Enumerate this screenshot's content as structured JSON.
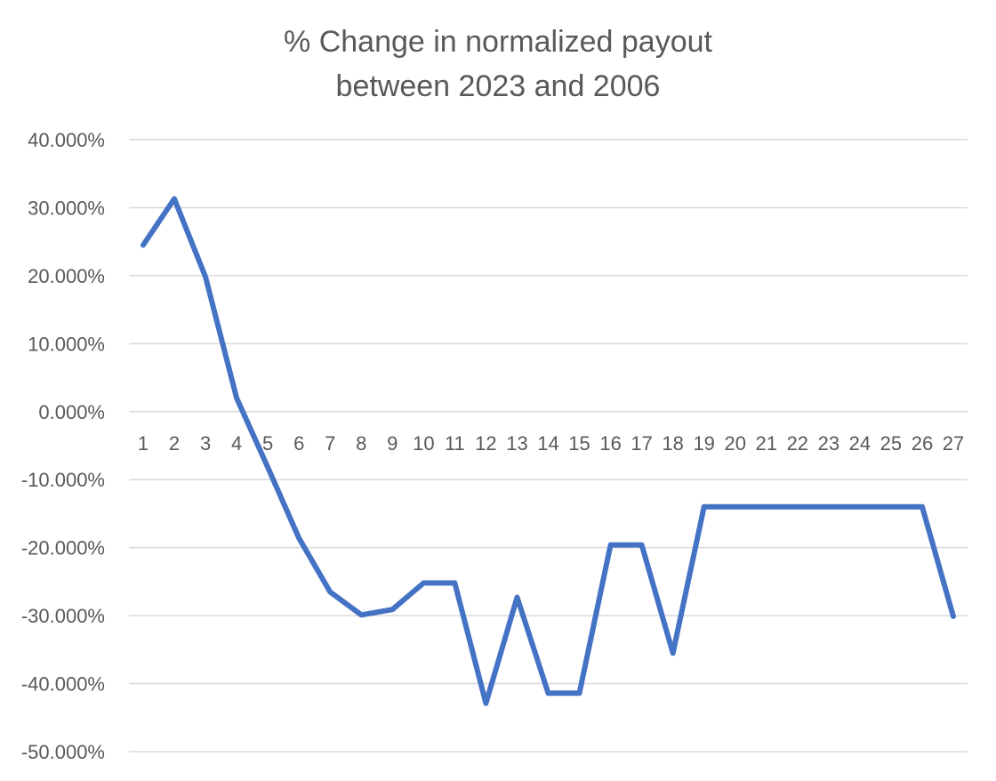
{
  "colors": {
    "series": "#4472C4",
    "grid": "#d9d9d9",
    "text": "#595959",
    "background": "#ffffff"
  },
  "chart_data": {
    "type": "line",
    "title_lines": [
      "% Change in normalized payout",
      "between 2023 and 2006"
    ],
    "xlabel": "",
    "ylabel": "",
    "categories": [
      "1",
      "2",
      "3",
      "4",
      "5",
      "6",
      "7",
      "8",
      "9",
      "10",
      "11",
      "12",
      "13",
      "14",
      "15",
      "16",
      "17",
      "18",
      "19",
      "20",
      "21",
      "22",
      "23",
      "24",
      "25",
      "26",
      "27"
    ],
    "series": [
      {
        "values": [
          24.5,
          31.3,
          19.8,
          2.0,
          -8.2,
          -18.6,
          -26.5,
          -29.9,
          -29.1,
          -25.2,
          -25.2,
          -42.9,
          -27.3,
          -41.4,
          -41.4,
          -19.6,
          -19.6,
          -35.5,
          -14.0,
          -14.0,
          -14.0,
          -14.0,
          -14.0,
          -14.0,
          -14.0,
          -14.0,
          -30.1
        ]
      }
    ],
    "ylim": [
      -50,
      40
    ],
    "y_ticks": [
      40,
      30,
      20,
      10,
      0,
      -10,
      -20,
      -30,
      -40,
      -50
    ],
    "y_tick_labels": [
      "40.000%",
      "30.000%",
      "20.000%",
      "10.000%",
      "0.000%",
      "-10.000%",
      "-20.000%",
      "-30.000%",
      "-40.000%",
      "-50.000%"
    ],
    "grid": true,
    "legend": "none"
  }
}
